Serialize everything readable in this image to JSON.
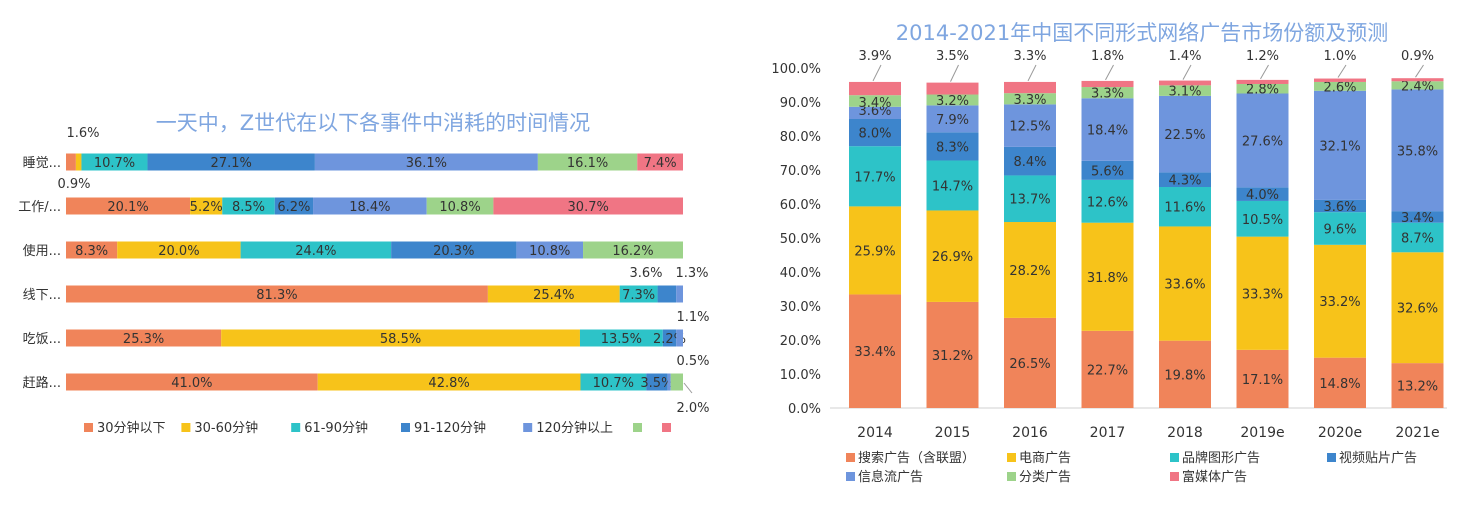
{
  "chart_data": [
    {
      "type": "bar",
      "orientation": "horizontal",
      "stacked": true,
      "title": "一天中，Z世代在以下各事件中消耗的时间情况",
      "categories": [
        "睡觉...",
        "工作/...",
        "使用...",
        "线下...",
        "吃饭...",
        "赶路..."
      ],
      "series": [
        {
          "name": "30分钟以下",
          "color": "#F0845A",
          "values": [
            1.6,
            20.1,
            8.3,
            81.3,
            25.3,
            41.0
          ],
          "labels": [
            "1.6%",
            "20.1%",
            "8.3%",
            "81.3%",
            "25.3%",
            "41.0%"
          ]
        },
        {
          "name": "30-60分钟",
          "color": "#F7C31A",
          "values": [
            0.9,
            5.2,
            20.0,
            25.4,
            58.5,
            42.8
          ],
          "labels": [
            "0.9%",
            "5.2%",
            "20.0%",
            "25.4%",
            "58.5%",
            "42.8%"
          ]
        },
        {
          "name": "61-90分钟",
          "color": "#2DC3C8",
          "values": [
            10.7,
            8.5,
            24.4,
            7.3,
            13.5,
            10.7
          ],
          "labels": [
            "10.7%",
            "8.5%",
            "24.4%",
            "7.3%",
            "13.5%",
            "10.7%"
          ]
        },
        {
          "name": "91-120分钟",
          "color": "#3D85CC",
          "values": [
            27.1,
            6.2,
            20.3,
            3.6,
            2.2,
            3.5
          ],
          "labels": [
            "27.1%",
            "6.2%",
            "20.3%",
            "3.6%",
            "2.2%",
            "3.5%"
          ]
        },
        {
          "name": "120分钟以上",
          "color": "#6E95DD",
          "values": [
            36.1,
            18.4,
            10.8,
            1.3,
            1.1,
            0.5
          ],
          "labels": [
            "36.1%",
            "18.4%",
            "10.8%",
            "1.3%",
            "1.1%",
            "0.5%"
          ]
        },
        {
          "name": "",
          "color": "#9DD38A",
          "values": [
            16.1,
            10.8,
            16.2,
            0,
            0,
            2.0
          ],
          "labels": [
            "16.1%",
            "10.8%",
            "16.2%",
            "",
            "",
            "2.0%"
          ]
        },
        {
          "name": "",
          "color": "#F07584",
          "values": [
            7.4,
            30.7,
            0,
            0,
            0,
            0
          ],
          "labels": [
            "7.4%",
            "30.7%",
            "",
            "",
            "",
            ""
          ]
        }
      ],
      "legend_position": "bottom"
    },
    {
      "type": "bar",
      "stacked": true,
      "title": "2014-2021年中国不同形式网络广告市场份额及预测",
      "categories": [
        "2014",
        "2015",
        "2016",
        "2017",
        "2018",
        "2019e",
        "2020e",
        "2021e"
      ],
      "y_ticks": [
        "0.0%",
        "10.0%",
        "20.0%",
        "30.0%",
        "40.0%",
        "50.0%",
        "60.0%",
        "70.0%",
        "80.0%",
        "90.0%",
        "100.0%"
      ],
      "ylim": [
        0,
        100
      ],
      "series": [
        {
          "name": "搜索广告（含联盟）",
          "color": "#F0845A",
          "values": [
            33.4,
            31.2,
            26.5,
            22.7,
            19.8,
            17.1,
            14.8,
            13.2
          ],
          "labels": [
            "33.4%",
            "31.2%",
            "26.5%",
            "22.7%",
            "19.8%",
            "17.1%",
            "14.8%",
            "13.2%"
          ]
        },
        {
          "name": "电商广告",
          "color": "#F7C31A",
          "values": [
            25.9,
            26.9,
            28.2,
            31.8,
            33.6,
            33.3,
            33.2,
            32.6
          ],
          "labels": [
            "25.9%",
            "26.9%",
            "28.2%",
            "31.8%",
            "33.6%",
            "33.3%",
            "33.2%",
            "32.6%"
          ]
        },
        {
          "name": "品牌图形广告",
          "color": "#2DC3C8",
          "values": [
            17.7,
            14.7,
            13.7,
            12.6,
            11.6,
            10.5,
            9.6,
            8.7
          ],
          "labels": [
            "17.7%",
            "14.7%",
            "13.7%",
            "12.6%",
            "11.6%",
            "10.5%",
            "9.6%",
            "8.7%"
          ]
        },
        {
          "name": "视频贴片广告",
          "color": "#3D85CC",
          "values": [
            8.0,
            8.3,
            8.4,
            5.6,
            4.3,
            4.0,
            3.6,
            3.4
          ],
          "labels": [
            "8.0%",
            "8.3%",
            "8.4%",
            "5.6%",
            "4.3%",
            "4.0%",
            "3.6%",
            "3.4%"
          ]
        },
        {
          "name": "信息流广告",
          "color": "#6E95DD",
          "values": [
            3.6,
            7.9,
            12.5,
            18.4,
            22.5,
            27.6,
            32.1,
            35.8
          ],
          "labels": [
            "3.6%",
            "7.9%",
            "12.5%",
            "18.4%",
            "22.5%",
            "27.6%",
            "32.1%",
            "35.8%"
          ]
        },
        {
          "name": "分类广告",
          "color": "#9DD38A",
          "values": [
            3.4,
            3.2,
            3.3,
            3.3,
            3.1,
            2.8,
            2.6,
            2.4
          ],
          "labels": [
            "3.4%",
            "3.2%",
            "3.3%",
            "3.3%",
            "3.1%",
            "2.8%",
            "2.6%",
            "2.4%"
          ]
        },
        {
          "name": "富媒体广告",
          "color": "#F07584",
          "values": [
            3.9,
            3.5,
            3.3,
            1.8,
            1.4,
            1.2,
            1.0,
            0.9
          ],
          "labels": [
            "3.9%",
            "3.5%",
            "3.3%",
            "1.8%",
            "1.4%",
            "1.2%",
            "1.0%",
            "0.9%"
          ]
        }
      ],
      "legend_position": "bottom"
    }
  ]
}
